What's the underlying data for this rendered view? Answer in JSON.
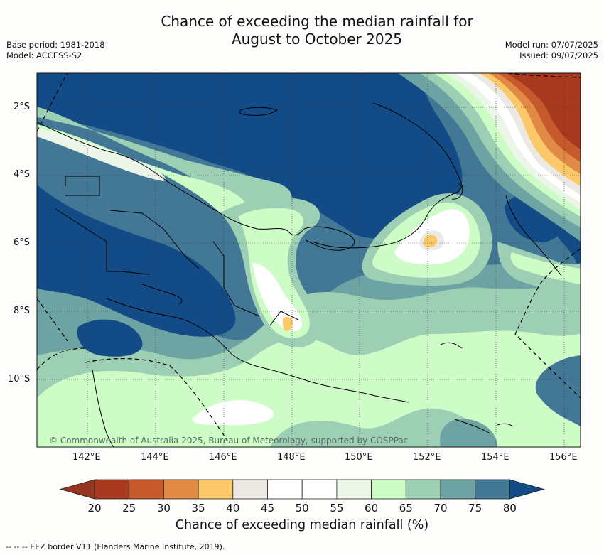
{
  "title": {
    "line1": "Chance of exceeding the median rainfall for",
    "line2": "August to October 2025"
  },
  "meta_left": {
    "base_period": "Base period: 1981-2018",
    "model": "Model: ACCESS-S2"
  },
  "meta_right": {
    "model_run": "Model run: 07/07/2025",
    "issued": "Issued: 09/07/2025"
  },
  "map": {
    "copyright": "© Commonwealth of Australia 2025, Bureau of Meteorology, supported by COSPPac",
    "lat_ticks": [
      "2°S",
      "4°S",
      "6°S",
      "8°S",
      "10°S"
    ],
    "lon_ticks": [
      "142°E",
      "144°E",
      "146°E",
      "148°E",
      "150°E",
      "152°E",
      "154°E",
      "156°E"
    ]
  },
  "colorbar": {
    "labels": [
      "20",
      "25",
      "30",
      "35",
      "40",
      "45",
      "50",
      "55",
      "60",
      "65",
      "70",
      "75",
      "80"
    ],
    "colors": [
      "#a8391f",
      "#c75a2c",
      "#e08a45",
      "#fbc86a",
      "#ece9e4",
      "#ffffff",
      "#ffffff",
      "#ecf6e8",
      "#cdfcc7",
      "#9ccfb4",
      "#6ea3a4",
      "#427896",
      "#134b86"
    ],
    "low_color": "#96351f",
    "high_color": "#134b86",
    "title": "Chance of exceeding median rainfall (%)"
  },
  "footer": {
    "legend": "-- -- -- EEZ border V11 (Flanders Marine Institute, 2019)."
  }
}
